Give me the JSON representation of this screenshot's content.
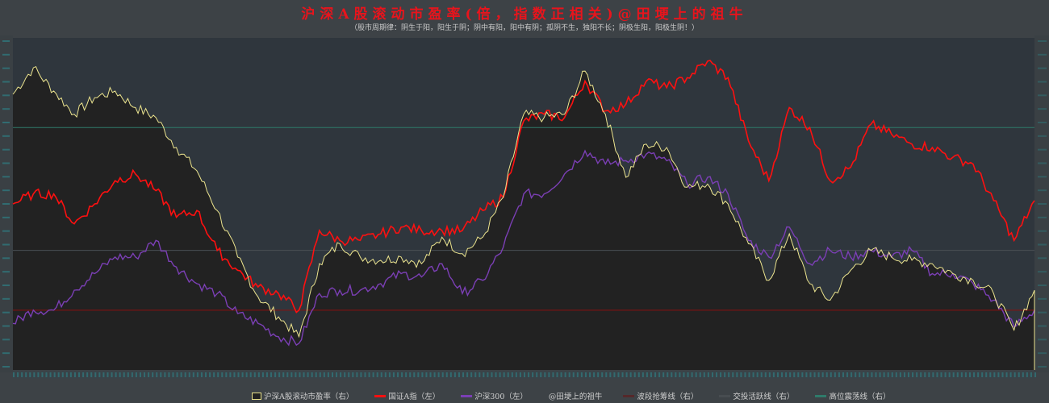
{
  "title": "沪深A股滚动市盈率(倍，指数正相关)@田埂上的祖牛",
  "subtitle": "（股市周期律：阴生于阳，阳生于阴；阴中有阳，阳中有阴；孤阴不生，独阳不长；阴极生阳，阳极生阴！）",
  "colors": {
    "background": "#3d4246",
    "plot_background": "#2f363d",
    "pe_fill": "#222222",
    "pe_line": "#ece48e",
    "index_a": "#ff1010",
    "csi300": "#7b3fb5",
    "high_osc_line": "#2f7a6a",
    "active_line": "#4a4f54",
    "accumulate_line": "#8b1010"
  },
  "chart_data": {
    "type": "line",
    "title": "沪深A股滚动市盈率(倍，指数正相关)@田埂上的祖牛",
    "note_axis": "tick labels illegible; values relative to plot range",
    "ylim": [
      0,
      100
    ],
    "grid": false,
    "legend_placement": "bottom",
    "x": [
      0,
      1,
      2,
      3,
      4,
      5,
      6,
      7,
      8,
      9,
      10,
      11,
      12,
      13,
      14,
      15,
      16,
      17,
      18,
      19,
      20,
      21,
      22,
      23,
      24,
      25,
      26,
      27,
      28,
      29,
      30,
      31,
      32,
      33,
      34,
      35,
      36,
      37,
      38,
      39,
      40,
      41,
      42,
      43,
      44,
      45,
      46,
      47,
      48,
      49,
      50
    ],
    "series": [
      {
        "name": "沪深A股滚动市盈率（右）",
        "style": "area",
        "values": [
          83,
          91,
          84,
          77,
          82,
          84,
          79,
          76,
          67,
          60,
          48,
          34,
          22,
          16,
          10,
          32,
          38,
          34,
          33,
          34,
          32,
          40,
          35,
          40,
          52,
          77,
          76,
          77,
          90,
          77,
          58,
          68,
          67,
          55,
          56,
          50,
          38,
          27,
          41,
          26,
          21,
          30,
          36,
          34,
          33,
          32,
          29,
          27,
          23,
          12,
          24
        ]
      },
      {
        "name": "国证A指（左）",
        "style": "line",
        "values": [
          50,
          53,
          53,
          44,
          50,
          57,
          59,
          54,
          46,
          48,
          36,
          30,
          25,
          23,
          18,
          42,
          39,
          39,
          41,
          43,
          42,
          42,
          42,
          48,
          52,
          75,
          77,
          76,
          87,
          78,
          80,
          87,
          85,
          88,
          93,
          88,
          69,
          57,
          79,
          73,
          57,
          61,
          74,
          71,
          68,
          67,
          64,
          62,
          51,
          39,
          51
        ]
      },
      {
        "name": "沪深300（左）",
        "style": "line",
        "values": [
          14,
          18,
          18,
          24,
          29,
          34,
          34,
          39,
          31,
          26,
          23,
          17,
          14,
          10,
          8,
          23,
          24,
          24,
          26,
          29,
          28,
          32,
          23,
          27,
          37,
          53,
          53,
          59,
          66,
          62,
          63,
          65,
          63,
          56,
          58,
          53,
          39,
          34,
          43,
          32,
          36,
          34,
          36,
          34,
          36,
          29,
          29,
          26,
          21,
          13,
          18
        ]
      }
    ],
    "reference_lines": [
      {
        "name": "高位震荡线（右）",
        "value": 73
      },
      {
        "name": "交投活跃线（右）",
        "value": 36
      },
      {
        "name": "波段抢筹线（右）",
        "value": 18
      }
    ]
  },
  "legend": [
    {
      "label": "沪深A股滚动市盈率（右）",
      "icon": "box"
    },
    {
      "label": "国证A指（左）",
      "icon": "line"
    },
    {
      "label": "沪深300（左）",
      "icon": "line"
    },
    {
      "label": "@田埂上的祖牛",
      "icon": "none"
    },
    {
      "label": "波段抢筹线（右）",
      "icon": "line"
    },
    {
      "label": "交投活跃线（右）",
      "icon": "line"
    },
    {
      "label": "高位震荡线（右）",
      "icon": "line"
    }
  ]
}
